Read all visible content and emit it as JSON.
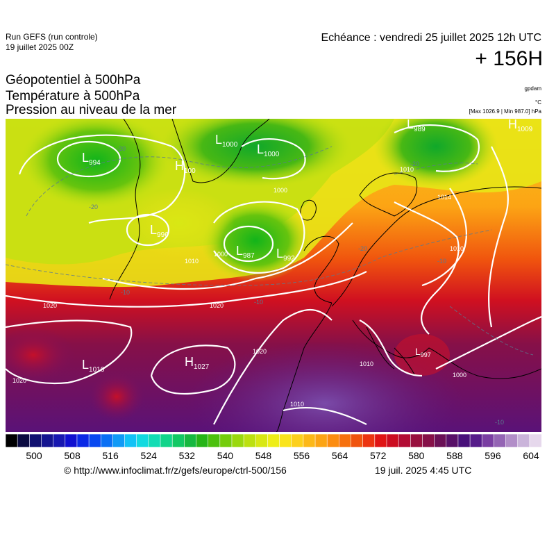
{
  "header": {
    "run_name": "Run GEFS (run controle)",
    "run_date": "19 juillet 2025 00Z",
    "valid_time": "Echéance : vendredi 25 juillet 2025 12h UTC",
    "lead_time": "+ 156H"
  },
  "titles": {
    "line1": "Géopotentiel à 500hPa",
    "line2": "Température à 500hPa",
    "line3": "Pression au niveau de la mer"
  },
  "units": {
    "geopotential": "gpdam",
    "temperature": "°C",
    "pressure": "[Max 1026.9 | Min 987.0] hPa"
  },
  "map": {
    "pressure_centers": [
      {
        "type": "L",
        "value": "994"
      },
      {
        "type": "L",
        "value": "1000"
      },
      {
        "type": "L",
        "value": "1000"
      },
      {
        "type": "L",
        "value": "989"
      },
      {
        "type": "H",
        "value": "1009"
      },
      {
        "type": "H",
        "value": "100"
      },
      {
        "type": "L",
        "value": "996"
      },
      {
        "type": "L",
        "value": "987"
      },
      {
        "type": "L",
        "value": "992"
      },
      {
        "type": "L",
        "value": "1016"
      },
      {
        "type": "H",
        "value": "1027"
      },
      {
        "type": "L",
        "value": "997"
      }
    ],
    "isobar_labels": [
      "1010",
      "1000",
      "1014",
      "1010",
      "1010",
      "1000",
      "1020",
      "1020",
      "1020",
      "1020",
      "1010",
      "1000",
      "1010"
    ],
    "isotherm_labels": [
      "-20",
      "-20",
      "-20",
      "-20",
      "-10",
      "-10",
      "-10",
      "-10"
    ]
  },
  "legend": {
    "colors": [
      "#000000",
      "#0a0a40",
      "#101070",
      "#141490",
      "#1818b0",
      "#1010d0",
      "#0a28e6",
      "#0848f0",
      "#0a70f4",
      "#109af6",
      "#12c2f6",
      "#12dae0",
      "#12dcb4",
      "#12d48a",
      "#12c864",
      "#16b840",
      "#26b418",
      "#4cc00e",
      "#74cc0c",
      "#9ad80e",
      "#bce010",
      "#d8e814",
      "#eeee18",
      "#fae41c",
      "#fcd01c",
      "#fcb818",
      "#fca414",
      "#fc8c10",
      "#f6700e",
      "#f0540e",
      "#ec3410",
      "#e01414",
      "#cc0c20",
      "#b20c34",
      "#98103e",
      "#861048",
      "#6a1056",
      "#581068",
      "#48107a",
      "#561c8a",
      "#7a3ea2",
      "#9464b4",
      "#b28ec8",
      "#cab4da",
      "#e6d8ec"
    ],
    "ticks": [
      "500",
      "508",
      "516",
      "524",
      "532",
      "540",
      "548",
      "556",
      "564",
      "572",
      "580",
      "588",
      "596",
      "604"
    ]
  },
  "footer": {
    "credit": "© http://www.infoclimat.fr/z/gefs/europe/ctrl-500/156",
    "generated": "19 juil. 2025  4:45 UTC"
  }
}
